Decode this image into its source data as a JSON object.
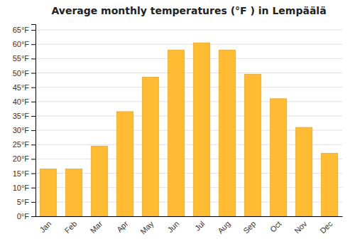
{
  "chart_data": {
    "type": "bar",
    "title": "Average monthly temperatures (°F ) in Lempäälä",
    "categories": [
      "Jan",
      "Feb",
      "Mar",
      "Apr",
      "May",
      "Jun",
      "Jul",
      "Aug",
      "Sep",
      "Oct",
      "Nov",
      "Dec"
    ],
    "values": [
      16.5,
      16.5,
      24.5,
      36.5,
      48.5,
      58.0,
      60.5,
      58.0,
      49.5,
      41.0,
      31.0,
      22.0
    ],
    "color": "#FFBB33",
    "ylim": [
      0,
      67
    ],
    "yticks": [
      {
        "value": 0,
        "label": "0°F"
      },
      {
        "value": 5,
        "label": "5°F"
      },
      {
        "value": 10,
        "label": "10°F"
      },
      {
        "value": 15,
        "label": "15°F"
      },
      {
        "value": 20,
        "label": "20°F"
      },
      {
        "value": 25,
        "label": "25°F"
      },
      {
        "value": 30,
        "label": "30°F"
      },
      {
        "value": 35,
        "label": "35°F"
      },
      {
        "value": 40,
        "label": "40°F"
      },
      {
        "value": 45,
        "label": "45°F"
      },
      {
        "value": 50,
        "label": "50°F"
      },
      {
        "value": 55,
        "label": "55°F"
      },
      {
        "value": 60,
        "label": "60°F"
      },
      {
        "value": 65,
        "label": "65°F"
      }
    ],
    "grid": true
  }
}
